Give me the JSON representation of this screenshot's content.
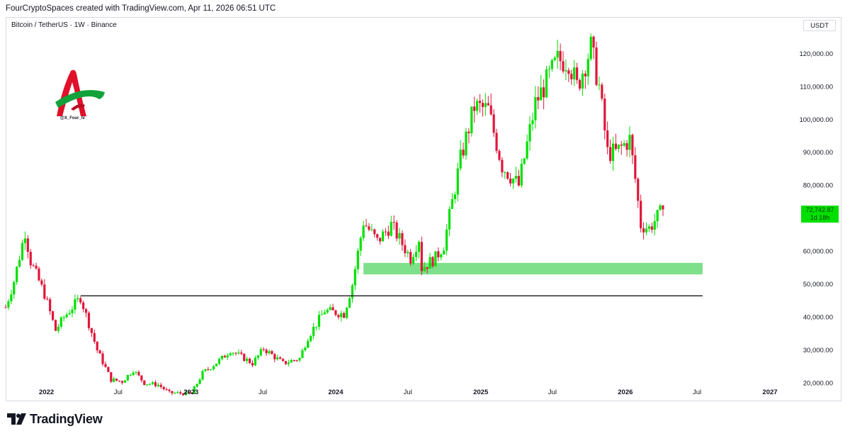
{
  "header": {
    "caption": "FourCryptoSpaces created with TradingView.com, Apr 11, 2026 06:51 UTC"
  },
  "symbol": {
    "title": "Bitcoin / TetherUS · 1W · Binance",
    "currency": "USDT"
  },
  "watermark": {
    "handle": "@X_Four_lv"
  },
  "footer": {
    "brand": "TradingView"
  },
  "last_price": {
    "value": "72,742.87",
    "countdown": "1d 18h"
  },
  "colors": {
    "up": "#00e000",
    "down": "#e0163a",
    "zone": "#7ee08a",
    "line": "#000000",
    "tag": "#00e000"
  },
  "chart_data": {
    "type": "candlestick",
    "x_labels": [
      {
        "label": "2022",
        "date": "2022-01-01",
        "bold": true
      },
      {
        "label": "Jul",
        "date": "2022-07-01",
        "bold": false
      },
      {
        "label": "2023",
        "date": "2023-01-01",
        "bold": true
      },
      {
        "label": "Jul",
        "date": "2023-07-01",
        "bold": false
      },
      {
        "label": "2024",
        "date": "2024-01-01",
        "bold": true
      },
      {
        "label": "Jul",
        "date": "2024-07-01",
        "bold": false
      },
      {
        "label": "2025",
        "date": "2025-01-01",
        "bold": true
      },
      {
        "label": "Jul",
        "date": "2025-07-01",
        "bold": false
      },
      {
        "label": "2026",
        "date": "2026-01-01",
        "bold": true
      },
      {
        "label": "Jul",
        "date": "2026-07-01",
        "bold": false
      },
      {
        "label": "2027",
        "date": "2027-01-01",
        "bold": true
      }
    ],
    "y_ticks": [
      {
        "label": "20,000.00",
        "value": 20000
      },
      {
        "label": "30,000.00",
        "value": 30000
      },
      {
        "label": "40,000.00",
        "value": 40000
      },
      {
        "label": "50,000.00",
        "value": 50000
      },
      {
        "label": "60,000.00",
        "value": 60000
      },
      {
        "label": "80,000.00",
        "value": 80000
      },
      {
        "label": "90,000.00",
        "value": 90000
      },
      {
        "label": "100,000.00",
        "value": 100000
      },
      {
        "label": "110,000.00",
        "value": 110000
      },
      {
        "label": "120,000.00",
        "value": 120000
      }
    ],
    "y_range": [
      19000,
      126000
    ],
    "x_range": [
      "2021-09-20",
      "2027-03-01"
    ],
    "support_zone": {
      "low": 53000,
      "high": 56500,
      "start": "2024-03-11",
      "end": "2026-07-15"
    },
    "support_line": {
      "value": 46500,
      "start": "2022-03-28",
      "end": "2026-07-15"
    },
    "anchors": [
      [
        "2021-09-20",
        43000
      ],
      [
        "2021-10-11",
        51000
      ],
      [
        "2021-11-08",
        66000
      ],
      [
        "2021-11-22",
        57000
      ],
      [
        "2021-12-27",
        47000
      ],
      [
        "2022-01-24",
        36000
      ],
      [
        "2022-02-14",
        40000
      ],
      [
        "2022-03-28",
        46000
      ],
      [
        "2022-05-09",
        30000
      ],
      [
        "2022-06-13",
        21000
      ],
      [
        "2022-07-11",
        20500
      ],
      [
        "2022-08-08",
        24000
      ],
      [
        "2022-09-05",
        20000
      ],
      [
        "2022-10-10",
        19500
      ],
      [
        "2022-11-07",
        17000
      ],
      [
        "2023-01-02",
        16800
      ],
      [
        "2023-01-30",
        23000
      ],
      [
        "2023-03-20",
        27500
      ],
      [
        "2023-04-10",
        30000
      ],
      [
        "2023-06-05",
        26000
      ],
      [
        "2023-07-03",
        30500
      ],
      [
        "2023-08-21",
        26000
      ],
      [
        "2023-10-02",
        27500
      ],
      [
        "2023-10-23",
        34000
      ],
      [
        "2023-12-04",
        42000
      ],
      [
        "2024-01-22",
        41000
      ],
      [
        "2024-02-12",
        50000
      ],
      [
        "2024-03-11",
        69000
      ],
      [
        "2024-04-15",
        63000
      ],
      [
        "2024-05-20",
        68000
      ],
      [
        "2024-07-08",
        58000
      ],
      [
        "2024-07-29",
        64000
      ],
      [
        "2024-08-05",
        55000
      ],
      [
        "2024-09-09",
        58000
      ],
      [
        "2024-09-30",
        62000
      ],
      [
        "2024-11-11",
        88000
      ],
      [
        "2024-12-16",
        104000
      ],
      [
        "2025-01-20",
        103000
      ],
      [
        "2025-02-24",
        86000
      ],
      [
        "2025-04-07",
        80000
      ],
      [
        "2025-05-19",
        105000
      ],
      [
        "2025-07-14",
        118000
      ],
      [
        "2025-08-11",
        118000
      ],
      [
        "2025-09-01",
        110000
      ],
      [
        "2025-10-06",
        122000
      ],
      [
        "2025-10-27",
        110000
      ],
      [
        "2025-11-17",
        90000
      ],
      [
        "2025-12-08",
        90000
      ],
      [
        "2026-01-12",
        94000
      ],
      [
        "2026-01-26",
        82000
      ],
      [
        "2026-02-09",
        68000
      ],
      [
        "2026-03-02",
        67000
      ],
      [
        "2026-04-06",
        72742
      ]
    ]
  }
}
